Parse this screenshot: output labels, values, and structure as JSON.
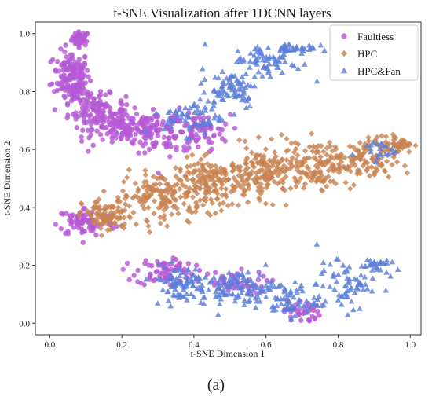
{
  "chart_data": {
    "type": "scatter",
    "title": "t-SNE Visualization after 1DCNN layers",
    "xlabel": "t-SNE Dimension 1",
    "ylabel": "t-SNE Dimension 2",
    "xlim": [
      -0.04,
      1.03
    ],
    "ylim": [
      -0.04,
      1.04
    ],
    "xticks": [
      "0.0",
      "0.2",
      "0.4",
      "0.6",
      "0.8",
      "1.0"
    ],
    "yticks": [
      "0.0",
      "0.2",
      "0.4",
      "0.6",
      "0.8",
      "1.0"
    ],
    "grid": false,
    "legend_position": "top-right",
    "panel_label": "(a)",
    "series": [
      {
        "name": "Faultless",
        "marker": "circle",
        "color": "#b659d6",
        "clusters": [
          {
            "cx": 0.085,
            "cy": 0.982,
            "sx": 0.012,
            "sy": 0.012,
            "n": 45
          },
          {
            "cx": 0.06,
            "cy": 0.86,
            "sx": 0.025,
            "sy": 0.04,
            "n": 120
          },
          {
            "cx": 0.07,
            "cy": 0.8,
            "sx": 0.02,
            "sy": 0.02,
            "n": 50
          },
          {
            "cx": 0.13,
            "cy": 0.73,
            "sx": 0.04,
            "sy": 0.03,
            "n": 110
          },
          {
            "cx": 0.22,
            "cy": 0.67,
            "sx": 0.05,
            "sy": 0.03,
            "n": 130
          },
          {
            "cx": 0.33,
            "cy": 0.66,
            "sx": 0.05,
            "sy": 0.035,
            "n": 90
          },
          {
            "cx": 0.42,
            "cy": 0.66,
            "sx": 0.04,
            "sy": 0.03,
            "n": 50
          },
          {
            "cx": 0.1,
            "cy": 0.35,
            "sx": 0.04,
            "sy": 0.025,
            "n": 80
          },
          {
            "cx": 0.32,
            "cy": 0.18,
            "sx": 0.04,
            "sy": 0.025,
            "n": 70
          },
          {
            "cx": 0.5,
            "cy": 0.14,
            "sx": 0.05,
            "sy": 0.02,
            "n": 45
          },
          {
            "cx": 0.7,
            "cy": 0.04,
            "sx": 0.025,
            "sy": 0.02,
            "n": 35
          }
        ],
        "points": [
          [
            0.08,
            0.99
          ],
          [
            0.09,
            0.97
          ],
          [
            0.04,
            0.9
          ],
          [
            0.05,
            0.84
          ],
          [
            0.07,
            0.8
          ],
          [
            0.12,
            0.74
          ],
          [
            0.2,
            0.7
          ],
          [
            0.3,
            0.66
          ],
          [
            0.43,
            0.65
          ],
          [
            0.08,
            0.34
          ],
          [
            0.12,
            0.32
          ],
          [
            0.31,
            0.2
          ],
          [
            0.35,
            0.22
          ],
          [
            0.5,
            0.14
          ],
          [
            0.69,
            0.03
          ]
        ]
      },
      {
        "name": "HPC",
        "marker": "diamond",
        "color": "#c98452",
        "clusters": [
          {
            "cx": 0.16,
            "cy": 0.37,
            "sx": 0.035,
            "sy": 0.03,
            "n": 90
          },
          {
            "cx": 0.3,
            "cy": 0.44,
            "sx": 0.05,
            "sy": 0.04,
            "n": 130
          },
          {
            "cx": 0.45,
            "cy": 0.48,
            "sx": 0.05,
            "sy": 0.045,
            "n": 170
          },
          {
            "cx": 0.6,
            "cy": 0.52,
            "sx": 0.05,
            "sy": 0.045,
            "n": 160
          },
          {
            "cx": 0.75,
            "cy": 0.55,
            "sx": 0.05,
            "sy": 0.04,
            "n": 130
          },
          {
            "cx": 0.88,
            "cy": 0.56,
            "sx": 0.04,
            "sy": 0.04,
            "n": 90
          },
          {
            "cx": 0.97,
            "cy": 0.62,
            "sx": 0.02,
            "sy": 0.015,
            "n": 40
          }
        ],
        "points": [
          [
            0.13,
            0.36
          ],
          [
            0.25,
            0.42
          ],
          [
            0.4,
            0.46
          ],
          [
            0.55,
            0.5
          ],
          [
            0.7,
            0.55
          ],
          [
            0.85,
            0.57
          ],
          [
            0.98,
            0.63
          ]
        ]
      },
      {
        "name": "HPC&Fan",
        "marker": "triangle",
        "color": "#5b7fd9",
        "clusters": [
          {
            "cx": 0.4,
            "cy": 0.71,
            "sx": 0.04,
            "sy": 0.03,
            "n": 60
          },
          {
            "cx": 0.5,
            "cy": 0.81,
            "sx": 0.04,
            "sy": 0.035,
            "n": 70
          },
          {
            "cx": 0.6,
            "cy": 0.9,
            "sx": 0.05,
            "sy": 0.03,
            "n": 70
          },
          {
            "cx": 0.68,
            "cy": 0.95,
            "sx": 0.03,
            "sy": 0.01,
            "n": 35
          },
          {
            "cx": 0.36,
            "cy": 0.14,
            "sx": 0.04,
            "sy": 0.03,
            "n": 80
          },
          {
            "cx": 0.52,
            "cy": 0.12,
            "sx": 0.05,
            "sy": 0.03,
            "n": 100
          },
          {
            "cx": 0.66,
            "cy": 0.08,
            "sx": 0.04,
            "sy": 0.03,
            "n": 60
          },
          {
            "cx": 0.82,
            "cy": 0.13,
            "sx": 0.04,
            "sy": 0.04,
            "n": 60
          },
          {
            "cx": 0.9,
            "cy": 0.2,
            "sx": 0.02,
            "sy": 0.015,
            "n": 30
          },
          {
            "cx": 0.9,
            "cy": 0.6,
            "sx": 0.03,
            "sy": 0.02,
            "n": 20
          }
        ],
        "points": [
          [
            0.38,
            0.72
          ],
          [
            0.5,
            0.82
          ],
          [
            0.62,
            0.92
          ],
          [
            0.72,
            0.96
          ],
          [
            0.4,
            0.09
          ],
          [
            0.55,
            0.1
          ],
          [
            0.8,
            0.22
          ],
          [
            0.9,
            0.21
          ],
          [
            0.86,
            0.05
          ]
        ]
      }
    ]
  }
}
